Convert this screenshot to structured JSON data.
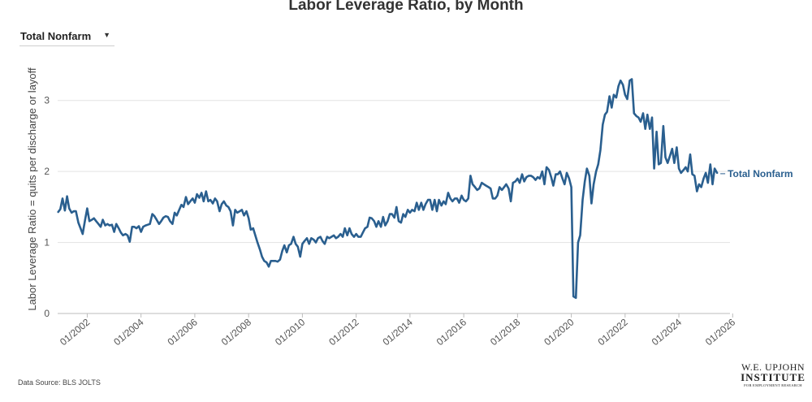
{
  "header": {
    "title": "Labor Leverage Ratio, by Month"
  },
  "filter": {
    "selected": "Total Nonfarm",
    "caret_icon": "caret-down-icon"
  },
  "footer": {
    "source": "Data Source: BLS JOLTS"
  },
  "logo": {
    "line1": "W.E. UPJOHN",
    "line2": "INSTITUTE",
    "line3": "FOR EMPLOYMENT RESEARCH"
  },
  "colors": {
    "series": "#2a5f8f",
    "grid": "#e3e3e3",
    "axis": "#bdbdbd"
  },
  "chart_data": {
    "type": "line",
    "title": "Labor Leverage Ratio, by Month",
    "xlabel": "",
    "ylabel": "Labor Leverage Ratio = quits per discharge or layoff",
    "xlim": [
      2000.9,
      2025.9
    ],
    "ylim": [
      0,
      3.5
    ],
    "yticks": [
      0,
      1,
      2,
      3
    ],
    "xticks": [
      {
        "x": 2002,
        "label": "01/2002"
      },
      {
        "x": 2004,
        "label": "01/2004"
      },
      {
        "x": 2006,
        "label": "01/2006"
      },
      {
        "x": 2008,
        "label": "01/2008"
      },
      {
        "x": 2010,
        "label": "01/2010"
      },
      {
        "x": 2012,
        "label": "01/2012"
      },
      {
        "x": 2014,
        "label": "01/2014"
      },
      {
        "x": 2016,
        "label": "01/2016"
      },
      {
        "x": 2018,
        "label": "01/2018"
      },
      {
        "x": 2020,
        "label": "01/2020"
      },
      {
        "x": 2022,
        "label": "01/2022"
      },
      {
        "x": 2024,
        "label": "01/2024"
      },
      {
        "x": 2026,
        "label": "01/2026"
      }
    ],
    "series": [
      {
        "name": "Total Nonfarm",
        "x": [
          2000.92,
          2001.0,
          2001.08,
          2001.17,
          2001.25,
          2001.33,
          2001.42,
          2001.5,
          2001.58,
          2001.67,
          2001.75,
          2001.83,
          2001.92,
          2002.0,
          2002.08,
          2002.17,
          2002.25,
          2002.33,
          2002.42,
          2002.5,
          2002.58,
          2002.67,
          2002.75,
          2002.83,
          2002.92,
          2003.0,
          2003.08,
          2003.17,
          2003.25,
          2003.33,
          2003.42,
          2003.5,
          2003.58,
          2003.67,
          2003.75,
          2003.83,
          2003.92,
          2004.0,
          2004.08,
          2004.17,
          2004.25,
          2004.33,
          2004.42,
          2004.5,
          2004.58,
          2004.67,
          2004.75,
          2004.83,
          2004.92,
          2005.0,
          2005.08,
          2005.17,
          2005.25,
          2005.33,
          2005.42,
          2005.5,
          2005.58,
          2005.67,
          2005.75,
          2005.83,
          2005.92,
          2006.0,
          2006.08,
          2006.17,
          2006.25,
          2006.33,
          2006.42,
          2006.5,
          2006.58,
          2006.67,
          2006.75,
          2006.83,
          2006.92,
          2007.0,
          2007.08,
          2007.17,
          2007.25,
          2007.33,
          2007.42,
          2007.5,
          2007.58,
          2007.67,
          2007.75,
          2007.83,
          2007.92,
          2008.0,
          2008.08,
          2008.17,
          2008.25,
          2008.33,
          2008.42,
          2008.5,
          2008.58,
          2008.67,
          2008.75,
          2008.83,
          2008.92,
          2009.0,
          2009.08,
          2009.17,
          2009.25,
          2009.33,
          2009.42,
          2009.5,
          2009.58,
          2009.67,
          2009.75,
          2009.83,
          2009.92,
          2010.0,
          2010.08,
          2010.17,
          2010.25,
          2010.33,
          2010.42,
          2010.5,
          2010.58,
          2010.67,
          2010.75,
          2010.83,
          2010.92,
          2011.0,
          2011.08,
          2011.17,
          2011.25,
          2011.33,
          2011.42,
          2011.5,
          2011.58,
          2011.67,
          2011.75,
          2011.83,
          2011.92,
          2012.0,
          2012.08,
          2012.17,
          2012.25,
          2012.33,
          2012.42,
          2012.5,
          2012.58,
          2012.67,
          2012.75,
          2012.83,
          2012.92,
          2013.0,
          2013.08,
          2013.17,
          2013.25,
          2013.33,
          2013.42,
          2013.5,
          2013.58,
          2013.67,
          2013.75,
          2013.83,
          2013.92,
          2014.0,
          2014.08,
          2014.17,
          2014.25,
          2014.33,
          2014.42,
          2014.5,
          2014.58,
          2014.67,
          2014.75,
          2014.83,
          2014.92,
          2015.0,
          2015.08,
          2015.17,
          2015.25,
          2015.33,
          2015.42,
          2015.5,
          2015.58,
          2015.67,
          2015.75,
          2015.83,
          2015.92,
          2016.0,
          2016.08,
          2016.17,
          2016.25,
          2016.33,
          2016.42,
          2016.5,
          2016.58,
          2016.67,
          2016.75,
          2016.83,
          2016.92,
          2017.0,
          2017.08,
          2017.17,
          2017.25,
          2017.33,
          2017.42,
          2017.5,
          2017.58,
          2017.67,
          2017.75,
          2017.83,
          2017.92,
          2018.0,
          2018.08,
          2018.17,
          2018.25,
          2018.33,
          2018.42,
          2018.5,
          2018.58,
          2018.67,
          2018.75,
          2018.83,
          2018.92,
          2019.0,
          2019.08,
          2019.17,
          2019.25,
          2019.33,
          2019.42,
          2019.5,
          2019.58,
          2019.67,
          2019.75,
          2019.83,
          2019.92,
          2020.0,
          2020.08,
          2020.17,
          2020.25,
          2020.33,
          2020.42,
          2020.5,
          2020.58,
          2020.67,
          2020.75,
          2020.83,
          2020.92,
          2021.0,
          2021.08,
          2021.17,
          2021.25,
          2021.33,
          2021.42,
          2021.5,
          2021.58,
          2021.67,
          2021.75,
          2021.83,
          2021.92,
          2022.0,
          2022.08,
          2022.17,
          2022.25,
          2022.33,
          2022.42,
          2022.5,
          2022.58,
          2022.67,
          2022.75,
          2022.83,
          2022.92,
          2023.0,
          2023.08,
          2023.17,
          2023.25,
          2023.33,
          2023.42,
          2023.5,
          2023.58,
          2023.67,
          2023.75,
          2023.83,
          2023.92,
          2024.0,
          2024.08,
          2024.17,
          2024.25,
          2024.33,
          2024.42,
          2024.5,
          2024.58,
          2024.67,
          2024.75,
          2024.83,
          2024.92,
          2025.0,
          2025.08,
          2025.17,
          2025.25,
          2025.33,
          2025.42
        ],
        "values": [
          1.43,
          1.47,
          1.62,
          1.45,
          1.65,
          1.48,
          1.42,
          1.44,
          1.44,
          1.28,
          1.2,
          1.12,
          1.32,
          1.48,
          1.3,
          1.32,
          1.34,
          1.3,
          1.26,
          1.22,
          1.32,
          1.24,
          1.26,
          1.24,
          1.25,
          1.15,
          1.26,
          1.2,
          1.14,
          1.1,
          1.12,
          1.1,
          1.01,
          1.22,
          1.22,
          1.2,
          1.23,
          1.15,
          1.22,
          1.24,
          1.25,
          1.26,
          1.4,
          1.37,
          1.32,
          1.26,
          1.3,
          1.35,
          1.37,
          1.36,
          1.3,
          1.26,
          1.42,
          1.38,
          1.46,
          1.53,
          1.5,
          1.64,
          1.54,
          1.58,
          1.62,
          1.56,
          1.68,
          1.63,
          1.7,
          1.58,
          1.72,
          1.58,
          1.6,
          1.55,
          1.62,
          1.58,
          1.44,
          1.54,
          1.58,
          1.52,
          1.5,
          1.44,
          1.24,
          1.46,
          1.42,
          1.44,
          1.46,
          1.38,
          1.44,
          1.34,
          1.18,
          1.2,
          1.1,
          1.0,
          0.9,
          0.8,
          0.74,
          0.72,
          0.66,
          0.74,
          0.74,
          0.74,
          0.73,
          0.76,
          0.88,
          0.96,
          0.86,
          0.96,
          0.98,
          1.08,
          0.98,
          0.94,
          0.8,
          0.98,
          1.02,
          1.06,
          0.98,
          1.06,
          1.04,
          1.0,
          1.06,
          1.08,
          1.02,
          0.98,
          1.08,
          1.06,
          1.08,
          1.1,
          1.06,
          1.08,
          1.12,
          1.08,
          1.2,
          1.1,
          1.2,
          1.12,
          1.08,
          1.12,
          1.08,
          1.08,
          1.14,
          1.2,
          1.22,
          1.35,
          1.34,
          1.3,
          1.22,
          1.3,
          1.22,
          1.36,
          1.24,
          1.3,
          1.4,
          1.4,
          1.35,
          1.5,
          1.3,
          1.28,
          1.4,
          1.36,
          1.46,
          1.42,
          1.46,
          1.44,
          1.56,
          1.46,
          1.56,
          1.46,
          1.54,
          1.6,
          1.6,
          1.46,
          1.6,
          1.44,
          1.6,
          1.52,
          1.58,
          1.54,
          1.7,
          1.62,
          1.58,
          1.62,
          1.62,
          1.56,
          1.66,
          1.6,
          1.58,
          1.62,
          1.94,
          1.82,
          1.78,
          1.74,
          1.76,
          1.84,
          1.82,
          1.8,
          1.78,
          1.76,
          1.62,
          1.62,
          1.66,
          1.78,
          1.74,
          1.78,
          1.82,
          1.76,
          1.58,
          1.84,
          1.86,
          1.9,
          1.84,
          1.96,
          1.86,
          1.92,
          1.94,
          1.94,
          1.92,
          1.88,
          1.92,
          1.9,
          2.0,
          1.82,
          2.06,
          2.02,
          1.92,
          1.8,
          1.96,
          1.96,
          2.0,
          1.9,
          1.82,
          1.98,
          1.9,
          1.78,
          0.24,
          0.22,
          1.0,
          1.1,
          1.6,
          1.86,
          2.04,
          1.94,
          1.55,
          1.82,
          2.0,
          2.1,
          2.3,
          2.66,
          2.8,
          2.84,
          3.06,
          2.9,
          3.08,
          3.04,
          3.2,
          3.28,
          3.22,
          3.08,
          3.02,
          3.28,
          3.3,
          2.82,
          2.78,
          2.76,
          2.7,
          2.82,
          2.6,
          2.8,
          2.6,
          2.76,
          2.04,
          2.56,
          2.1,
          2.12,
          2.64,
          2.2,
          2.12,
          2.22,
          2.32,
          2.12,
          2.34,
          2.04,
          1.98,
          2.02,
          2.06,
          2.0,
          2.24,
          1.96,
          1.94,
          1.72,
          1.82,
          1.78,
          1.9,
          1.98,
          1.84,
          2.1,
          1.82,
          2.04,
          1.98
        ]
      }
    ]
  }
}
